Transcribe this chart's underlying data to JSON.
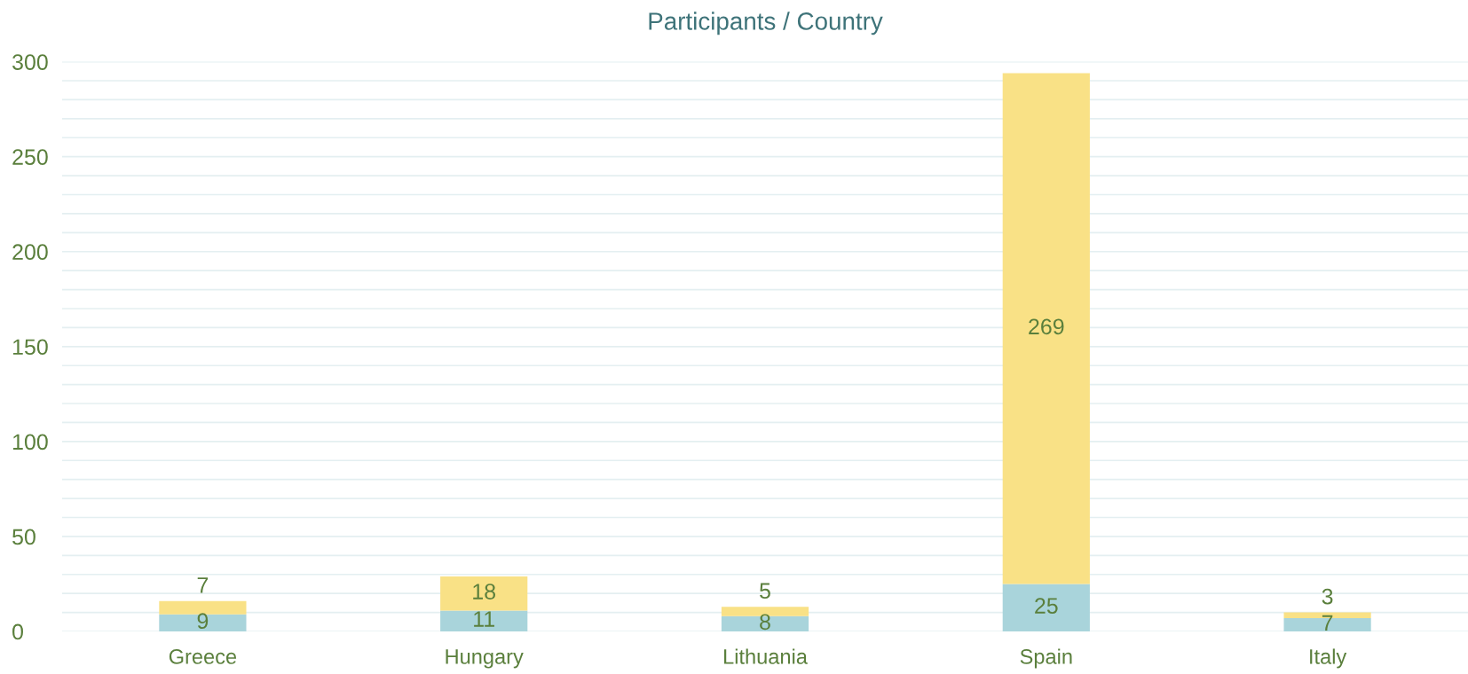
{
  "chart_data": {
    "type": "bar",
    "title": "Participants / Country",
    "categories": [
      "Greece",
      "Hungary",
      "Lithuania",
      "Spain",
      "Italy"
    ],
    "stacked": true,
    "series": [
      {
        "color": "#a9d4db",
        "values": [
          9,
          11,
          8,
          25,
          7
        ]
      },
      {
        "color": "#f9e186",
        "values": [
          7,
          18,
          5,
          269,
          3
        ]
      }
    ],
    "ylim": [
      0,
      300
    ],
    "yticks": [
      0,
      {
        "value": 10,
        "label": null
      },
      {
        "value": 20,
        "label": null
      },
      {
        "value": 30,
        "label": null
      },
      {
        "value": 40,
        "label": null
      },
      50,
      {
        "value": 60,
        "label": null
      },
      {
        "value": 70,
        "label": null
      },
      {
        "value": 80,
        "label": null
      },
      {
        "value": 90,
        "label": null
      },
      100,
      {
        "value": 110,
        "label": null
      },
      {
        "value": 120,
        "label": null
      },
      {
        "value": 130,
        "label": null
      },
      {
        "value": 140,
        "label": null
      },
      150,
      {
        "value": 160,
        "label": null
      },
      {
        "value": 170,
        "label": null
      },
      {
        "value": 180,
        "label": null
      },
      {
        "value": 190,
        "label": null
      },
      200,
      {
        "value": 210,
        "label": null
      },
      {
        "value": 220,
        "label": null
      },
      {
        "value": 230,
        "label": null
      },
      {
        "value": 240,
        "label": null
      },
      250,
      {
        "value": 260,
        "label": null
      },
      {
        "value": 270,
        "label": null
      },
      {
        "value": 280,
        "label": null
      },
      {
        "value": 290,
        "label": null
      },
      300
    ],
    "grid": "y",
    "data_labels": true
  }
}
